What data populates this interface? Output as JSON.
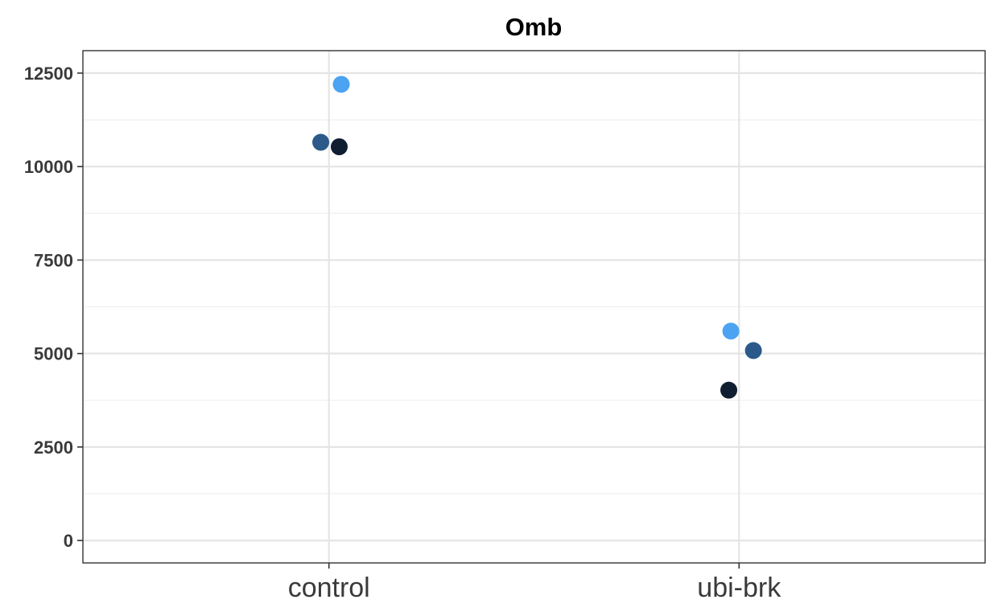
{
  "chart_data": {
    "type": "scatter",
    "title": "Omb",
    "xlabel": "",
    "ylabel": "",
    "categories": [
      "control",
      "ubi-brk"
    ],
    "ylim": [
      -600,
      13100
    ],
    "y_ticks": [
      0,
      2500,
      5000,
      7500,
      10000,
      12500
    ],
    "y_tick_labels": [
      "0",
      "2500",
      "5000",
      "7500",
      "10000",
      "12500"
    ],
    "grid": true,
    "legend": "none",
    "points": [
      {
        "category": "control",
        "jitter": 0.03,
        "y": 12200,
        "color": "#4BA3F2"
      },
      {
        "category": "control",
        "jitter": -0.02,
        "y": 10650,
        "color": "#2B5A8A"
      },
      {
        "category": "control",
        "jitter": 0.025,
        "y": 10530,
        "color": "#0F1E30"
      },
      {
        "category": "ubi-brk",
        "jitter": -0.02,
        "y": 5600,
        "color": "#4BA3F2"
      },
      {
        "category": "ubi-brk",
        "jitter": 0.035,
        "y": 5080,
        "color": "#2B5A8A"
      },
      {
        "category": "ubi-brk",
        "jitter": -0.025,
        "y": 4020,
        "color": "#0F1E30"
      }
    ]
  }
}
